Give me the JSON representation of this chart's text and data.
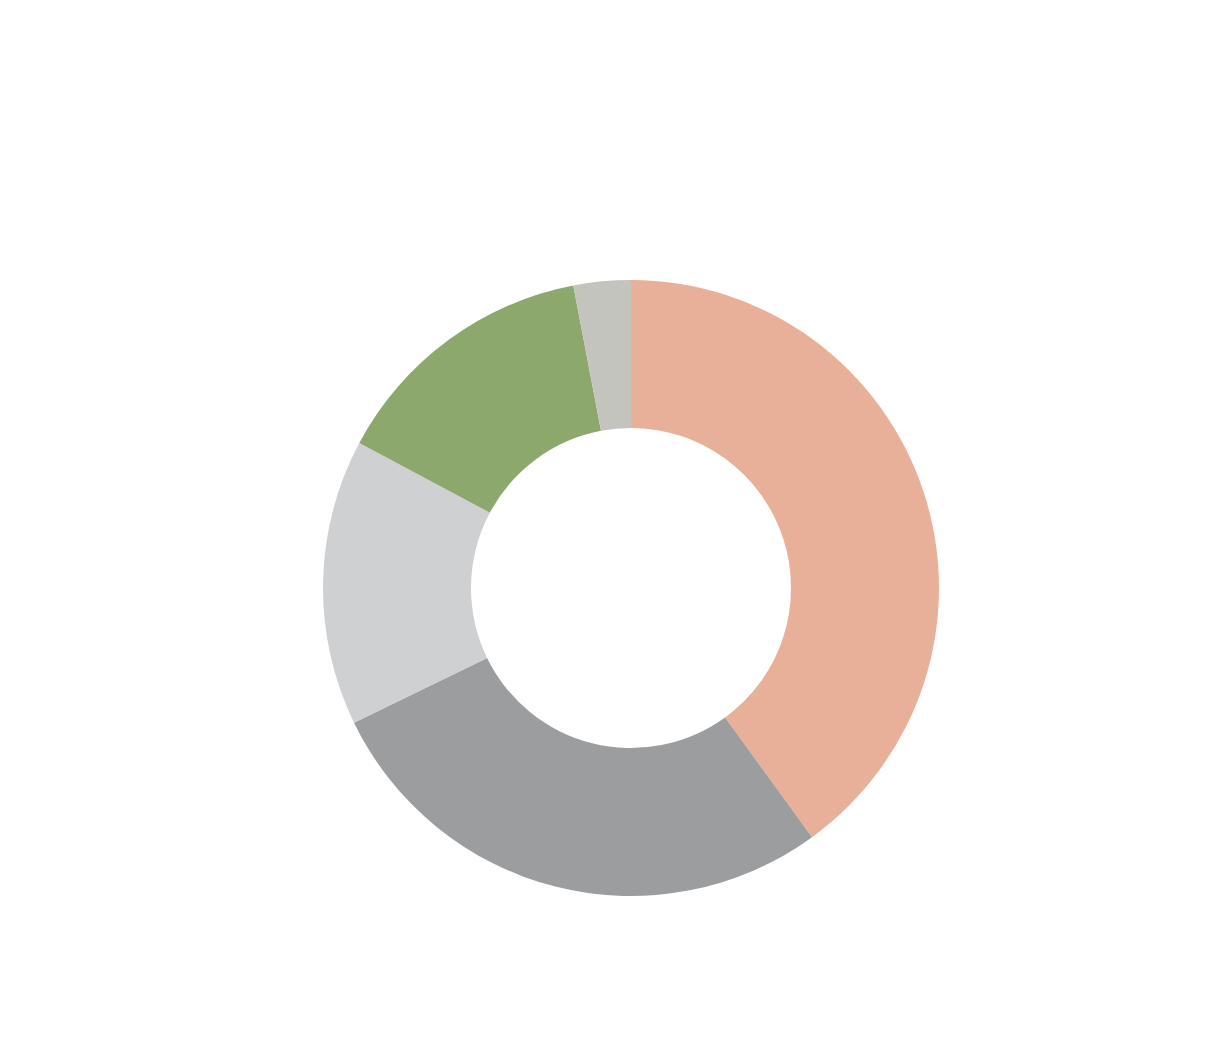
{
  "chart_data": {
    "type": "donut",
    "categories": [
      null,
      null,
      null,
      null,
      null
    ],
    "values": [
      40,
      27.8,
      15,
      14.2,
      3
    ],
    "colors": [
      "#e8b098",
      "#9c9d9f",
      "#cfd0d2",
      "#8da86d",
      "#c4c4be"
    ]
  }
}
